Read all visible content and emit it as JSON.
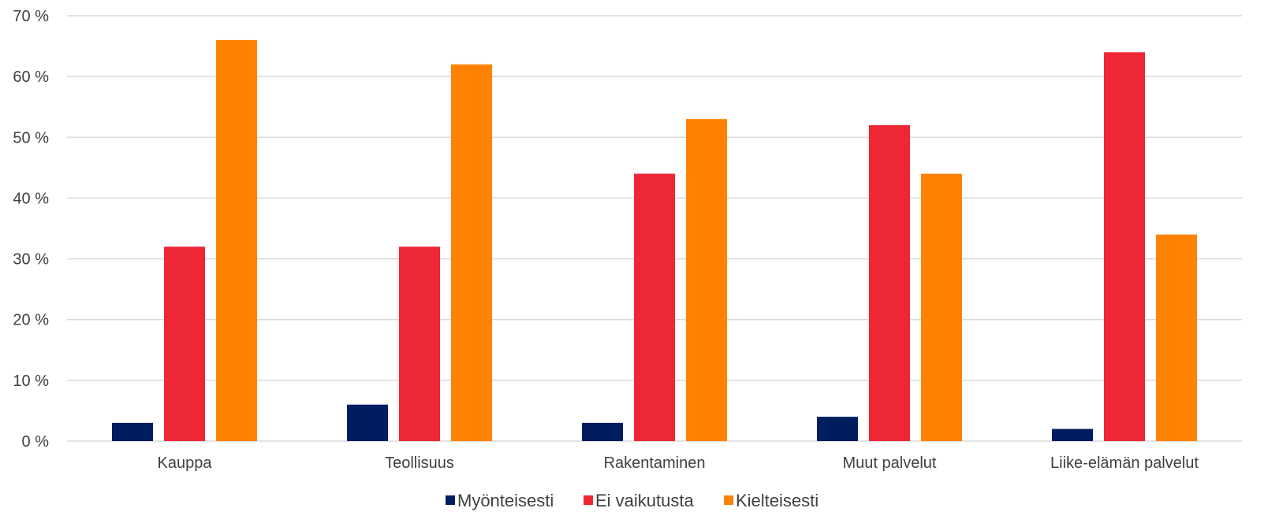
{
  "chart_data": {
    "type": "bar",
    "categories": [
      "Kauppa",
      "Teollisuus",
      "Rakentaminen",
      "Muut palvelut",
      "Liike-elämän palvelut"
    ],
    "series": [
      {
        "name": "Myönteisesti",
        "color": "#001E5F",
        "values": [
          3,
          6,
          3,
          4,
          2
        ]
      },
      {
        "name": "Ei vaikutusta",
        "color": "#EE2737",
        "values": [
          32,
          32,
          44,
          52,
          64
        ]
      },
      {
        "name": "Kielteisesti",
        "color": "#FF8200",
        "values": [
          66,
          62,
          53,
          44,
          34
        ]
      }
    ],
    "ylim": [
      0,
      70
    ],
    "yticks": [
      "0 %",
      "10 %",
      "20 %",
      "30 %",
      "40 %",
      "50 %",
      "60 %",
      "70 %"
    ],
    "grid": true,
    "legend_position": "bottom",
    "gridline_color": "#D9D9D9"
  }
}
